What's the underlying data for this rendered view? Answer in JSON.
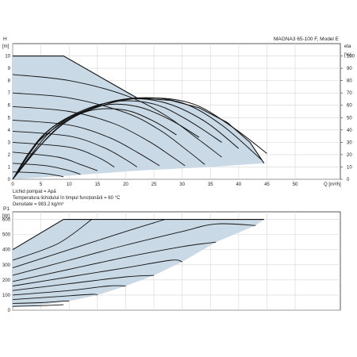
{
  "colors": {
    "area": "#c9d9e6",
    "curve": "#111111",
    "grid": "#d6d6d6",
    "frame": "#333333"
  },
  "chart_data": [
    {
      "type": "line",
      "title": "MAGNA3 65-100 F, Model E",
      "ylabel_name": "H",
      "ylabel_unit": "[m]",
      "y2label_name": "eta",
      "y2label_unit": "[%]",
      "xlabel": "Q [m³/h]",
      "xlim": [
        0,
        58
      ],
      "ylim": [
        0,
        11
      ],
      "y2lim": [
        0,
        110
      ],
      "xticks": [
        0,
        5,
        10,
        15,
        20,
        25,
        30,
        35,
        40,
        45,
        50
      ],
      "yticks": [
        0,
        1,
        2,
        3,
        4,
        5,
        6,
        7,
        8,
        9,
        10
      ],
      "y2ticks": [
        0,
        10,
        20,
        30,
        40,
        50,
        60,
        70,
        80,
        90,
        100
      ],
      "grid": true,
      "notes": [
        "Lichid pompat = Apă",
        "Temperatura lichidului în timpul funcționării = 60 °C",
        "Densitate = 983.2 kg/m³"
      ],
      "operating_area": [
        [
          0,
          10
        ],
        [
          9,
          10
        ],
        [
          22,
          6.6
        ],
        [
          28,
          6.4
        ],
        [
          33,
          5.8
        ],
        [
          38,
          4.6
        ],
        [
          42,
          3.0
        ],
        [
          44.5,
          1.3
        ],
        [
          35,
          1.0
        ],
        [
          22,
          0.7
        ],
        [
          10,
          0.3
        ],
        [
          0,
          0
        ]
      ],
      "series": [
        {
          "values": [
            [
              0,
              10
            ],
            [
              9,
              10
            ],
            [
              22,
              6.6
            ],
            [
              28,
              6.4
            ],
            [
              33,
              5.8
            ],
            [
              38,
              4.6
            ],
            [
              42,
              3.0
            ],
            [
              44.5,
              1.3
            ]
          ]
        },
        {
          "values": [
            [
              0,
              8.5
            ],
            [
              10,
              8.0
            ],
            [
              20,
              6.8
            ],
            [
              27,
              5.2
            ],
            [
              33,
              3.2
            ],
            [
              37,
              1.8
            ]
          ]
        },
        {
          "values": [
            [
              0,
              7.0
            ],
            [
              10,
              6.6
            ],
            [
              20,
              5.4
            ],
            [
              26,
              4.0
            ],
            [
              31,
              2.3
            ],
            [
              34,
              1.2
            ]
          ]
        },
        {
          "values": [
            [
              0,
              5.9
            ],
            [
              10,
              5.5
            ],
            [
              18,
              4.5
            ],
            [
              24,
              3.1
            ],
            [
              28,
              1.9
            ],
            [
              30.5,
              1.1
            ]
          ]
        },
        {
          "values": [
            [
              0,
              4.8
            ],
            [
              10,
              4.4
            ],
            [
              17,
              3.4
            ],
            [
              22,
              2.2
            ],
            [
              26,
              1.1
            ]
          ]
        },
        {
          "values": [
            [
              0,
              3.9
            ],
            [
              10,
              3.5
            ],
            [
              16,
              2.6
            ],
            [
              20,
              1.6
            ],
            [
              22,
              1.0
            ]
          ]
        },
        {
          "values": [
            [
              0,
              3.0
            ],
            [
              10,
              2.6
            ],
            [
              15,
              1.8
            ],
            [
              18,
              1.0
            ]
          ]
        },
        {
          "values": [
            [
              0,
              2.2
            ],
            [
              8,
              1.8
            ],
            [
              12,
              1.2
            ],
            [
              15,
              0.7
            ]
          ]
        },
        {
          "values": [
            [
              0,
              1.3
            ],
            [
              6,
              1.1
            ],
            [
              10,
              0.7
            ],
            [
              12,
              0.4
            ]
          ]
        },
        {
          "values": [
            [
              0,
              0.6
            ],
            [
              5,
              0.5
            ],
            [
              8,
              0.3
            ],
            [
              9,
              0.2
            ]
          ]
        }
      ],
      "efficiency_curves": [
        {
          "values": [
            [
              0,
              0
            ],
            [
              8,
              42
            ],
            [
              16,
              60
            ],
            [
              24,
              66
            ],
            [
              32,
              61
            ],
            [
              39,
              42
            ],
            [
              45,
              21
            ]
          ]
        },
        {
          "values": [
            [
              0,
              0
            ],
            [
              7,
              40
            ],
            [
              14,
              58
            ],
            [
              22,
              66
            ],
            [
              30,
              62
            ],
            [
              37,
              44
            ],
            [
              44,
              16
            ]
          ]
        },
        {
          "values": [
            [
              0,
              0
            ],
            [
              6,
              38
            ],
            [
              13,
              56
            ],
            [
              20,
              65
            ],
            [
              27,
              62
            ],
            [
              34,
              47
            ],
            [
              40,
              25
            ]
          ]
        },
        {
          "values": [
            [
              0,
              0
            ],
            [
              5,
              34
            ],
            [
              11,
              53
            ],
            [
              18,
              63
            ],
            [
              25,
              61
            ],
            [
              31,
              48
            ],
            [
              37,
              30
            ]
          ]
        },
        {
          "values": [
            [
              0,
              0
            ],
            [
              4,
              28
            ],
            [
              10,
              49
            ],
            [
              16,
              60
            ],
            [
              22,
              59
            ],
            [
              28,
              48
            ],
            [
              33,
              34
            ]
          ]
        },
        {
          "values": [
            [
              0,
              0
            ],
            [
              4,
              23
            ],
            [
              9,
              45
            ],
            [
              14,
              56
            ],
            [
              20,
              56
            ],
            [
              25,
              47
            ],
            [
              29,
              36
            ]
          ]
        }
      ]
    },
    {
      "type": "line",
      "ylabel_name": "P1",
      "ylabel_unit": "[W]",
      "xlim": [
        0,
        58
      ],
      "ylim": [
        0,
        650
      ],
      "yticks": [
        0,
        100,
        200,
        300,
        400,
        500,
        600
      ],
      "grid": true,
      "operating_area": [
        [
          0,
          400
        ],
        [
          9,
          600
        ],
        [
          44.5,
          600
        ],
        [
          43,
          560
        ],
        [
          36,
          450
        ],
        [
          30,
          320
        ],
        [
          25,
          230
        ],
        [
          20,
          160
        ],
        [
          15,
          100
        ],
        [
          10,
          60
        ],
        [
          5,
          35
        ],
        [
          0,
          20
        ]
      ],
      "series": [
        {
          "values": [
            [
              0,
              400
            ],
            [
              9,
              600
            ],
            [
              44.5,
              600
            ]
          ]
        },
        {
          "values": [
            [
              0,
              330
            ],
            [
              8,
              440
            ],
            [
              14,
              600
            ]
          ]
        },
        {
          "values": [
            [
              0,
              280
            ],
            [
              10,
              400
            ],
            [
              20,
              520
            ],
            [
              27,
              600
            ]
          ]
        },
        {
          "values": [
            [
              0,
              230
            ],
            [
              10,
              330
            ],
            [
              20,
              430
            ],
            [
              30,
              520
            ],
            [
              36,
              570
            ],
            [
              43,
              560
            ]
          ]
        },
        {
          "values": [
            [
              0,
              190
            ],
            [
              10,
              270
            ],
            [
              20,
              350
            ],
            [
              30,
              420
            ],
            [
              36,
              450
            ]
          ]
        },
        {
          "values": [
            [
              0,
              160
            ],
            [
              10,
              220
            ],
            [
              20,
              280
            ],
            [
              28,
              330
            ],
            [
              30,
              320
            ]
          ]
        },
        {
          "values": [
            [
              0,
              130
            ],
            [
              10,
              175
            ],
            [
              20,
              220
            ],
            [
              25,
              230
            ]
          ]
        },
        {
          "values": [
            [
              0,
              100
            ],
            [
              10,
              130
            ],
            [
              17,
              160
            ],
            [
              20,
              160
            ]
          ]
        },
        {
          "values": [
            [
              0,
              70
            ],
            [
              8,
              90
            ],
            [
              14,
              105
            ],
            [
              15,
              100
            ]
          ]
        },
        {
          "values": [
            [
              0,
              45
            ],
            [
              5,
              50
            ],
            [
              9,
              60
            ],
            [
              10,
              60
            ]
          ]
        },
        {
          "values": [
            [
              0,
              25
            ],
            [
              5,
              30
            ],
            [
              9,
              36
            ]
          ]
        }
      ]
    }
  ]
}
